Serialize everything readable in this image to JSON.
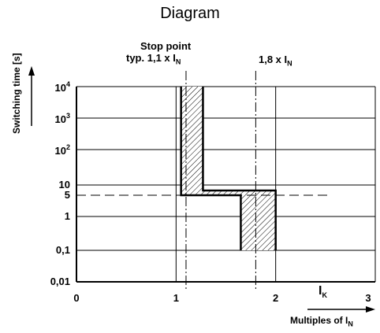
{
  "title": "Diagram",
  "y_axis": {
    "label": "Switching time [s]",
    "ticks": [
      {
        "base": "10",
        "exp": "4"
      },
      {
        "base": "10",
        "exp": "3"
      },
      {
        "base": "10",
        "exp": "2"
      },
      {
        "base": "10",
        "exp": ""
      },
      {
        "base": "5",
        "exp": ""
      },
      {
        "base": "1",
        "exp": ""
      },
      {
        "base": "0,1",
        "exp": ""
      },
      {
        "base": "0,01",
        "exp": ""
      }
    ]
  },
  "x_axis": {
    "label_main": "Multiples of I",
    "label_sub": "N",
    "ticks": [
      "0",
      "1",
      "2",
      "3"
    ],
    "ik_label": "I",
    "ik_sub": "K"
  },
  "annotations": {
    "stop_point_line1": "Stop point",
    "stop_point_line2": "typ. 1,1 x I",
    "stop_point_sub": "N",
    "limit_label": "1,8 x I",
    "limit_sub": "N"
  },
  "chart_data": {
    "type": "area",
    "xlabel": "Multiples of IN",
    "ylabel": "Switching time [s]",
    "xlim": [
      0,
      3
    ],
    "ylim": [
      0.01,
      10000
    ],
    "yscale": "log",
    "grid": true,
    "reference_lines": {
      "vertical_dashdot": [
        1.1,
        1.8
      ],
      "horizontal_dashed": [
        5
      ]
    },
    "tripping_band": {
      "left_boundary": [
        [
          1.05,
          10000
        ],
        [
          1.05,
          5
        ],
        [
          1.65,
          5
        ],
        [
          1.65,
          0.1
        ]
      ],
      "right_boundary": [
        [
          1.27,
          10000
        ],
        [
          1.27,
          7
        ],
        [
          2.0,
          7
        ],
        [
          2.0,
          0.1
        ]
      ]
    }
  }
}
